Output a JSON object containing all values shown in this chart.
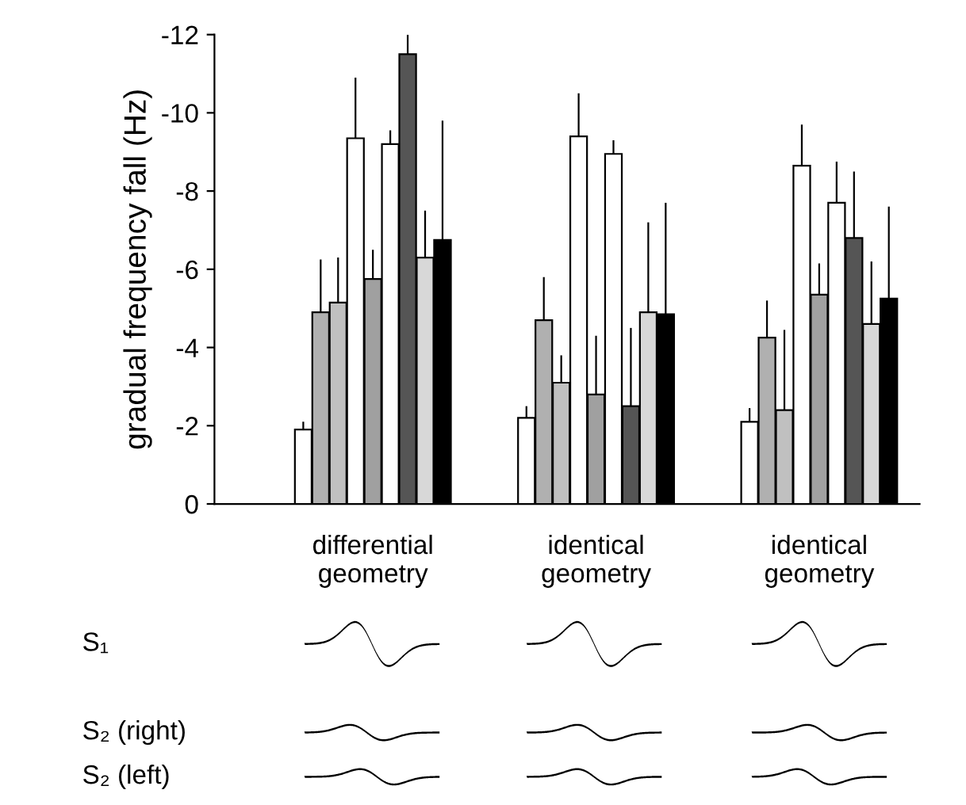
{
  "chart_data": {
    "type": "bar",
    "ylabel": "gradual frequency fall (Hz)",
    "categories": [
      "differential\ngeometry",
      "identical\ngeometry",
      "identical\ngeometry"
    ],
    "series": [
      {
        "color": "#ffffff",
        "values": [
          -1.9,
          -2.2,
          -2.1
        ],
        "errors": [
          [
            -2.1,
            -1.9
          ],
          [
            -2.5,
            -2.2
          ],
          [
            -2.45,
            -2.1
          ]
        ]
      },
      {
        "color": "#b0b0b0",
        "values": [
          -4.9,
          -4.7,
          -4.25
        ],
        "errors": [
          [
            -6.25,
            -4.9
          ],
          [
            -5.8,
            -4.7
          ],
          [
            -5.2,
            -4.25
          ]
        ]
      },
      {
        "color": "#c0c0c0",
        "values": [
          -5.15,
          -3.1,
          -2.4
        ],
        "errors": [
          [
            -6.3,
            -5.15
          ],
          [
            -3.8,
            -3.1
          ],
          [
            -4.45,
            -2.4
          ]
        ]
      },
      {
        "color": "#ffffff",
        "values": [
          -9.35,
          -9.4,
          -8.65
        ],
        "errors": [
          [
            -10.9,
            -9.35
          ],
          [
            -10.5,
            -9.4
          ],
          [
            -9.7,
            -8.65
          ]
        ]
      },
      {
        "color": "#a0a0a0",
        "values": [
          -5.75,
          -2.8,
          -5.35
        ],
        "errors": [
          [
            -6.5,
            -5.75
          ],
          [
            -4.3,
            -2.8
          ],
          [
            -6.15,
            -5.35
          ]
        ]
      },
      {
        "color": "#ffffff",
        "values": [
          -9.2,
          -8.95,
          -7.7
        ],
        "errors": [
          [
            -9.55,
            -9.2
          ],
          [
            -9.3,
            -8.95
          ],
          [
            -8.75,
            -7.7
          ]
        ]
      },
      {
        "color": "#555555",
        "values": [
          -11.5,
          -2.5,
          -6.8
        ],
        "errors": [
          [
            -12,
            -11.5
          ],
          [
            -4.5,
            -2.5
          ],
          [
            -8.5,
            -6.8
          ]
        ]
      },
      {
        "color": "#d8d8d8",
        "values": [
          -6.3,
          -4.9,
          -4.6
        ],
        "errors": [
          [
            -7.5,
            -6.3
          ],
          [
            -7.2,
            -4.9
          ],
          [
            -6.2,
            -4.6
          ]
        ]
      },
      {
        "color": "#000000",
        "values": [
          -6.75,
          -4.85,
          -5.25
        ],
        "errors": [
          [
            -9.8,
            -6.75
          ],
          [
            -7.7,
            -4.85
          ],
          [
            -7.6,
            -5.25
          ]
        ]
      }
    ],
    "ylim": [
      0,
      -12
    ],
    "yticks": [
      0,
      {
        "value": -2,
        "label": "-2"
      },
      {
        "value": -4,
        "label": "-4"
      },
      {
        "value": -6,
        "label": "-6"
      },
      {
        "value": -8,
        "label": "-8"
      },
      {
        "value": -10,
        "label": "-10"
      },
      {
        "value": -12,
        "label": "-12"
      }
    ],
    "annotations": [
      "S₁",
      "S₂ (right)",
      "S₂ (left)"
    ]
  }
}
